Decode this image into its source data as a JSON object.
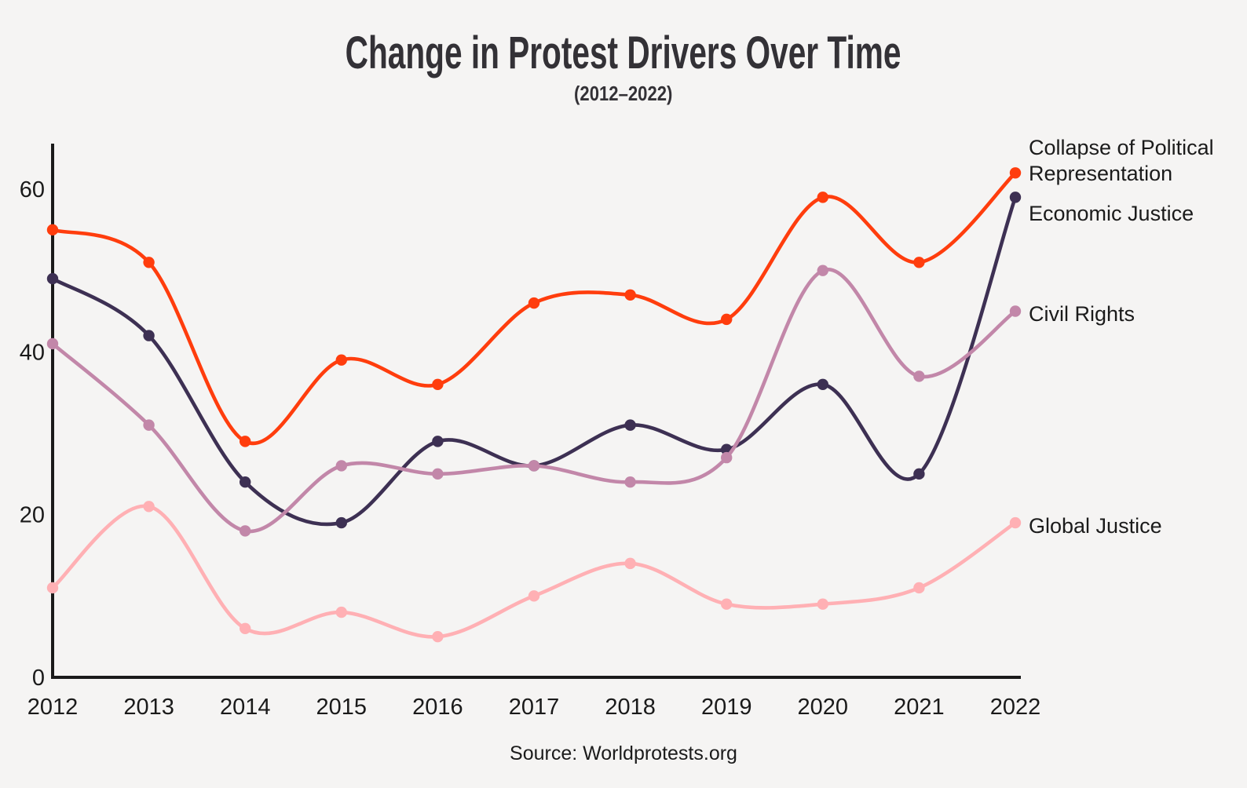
{
  "title": "Change in Protest Drivers Over Time",
  "subtitle": "(2012–2022)",
  "source": "Source: Worldprotests.org",
  "colors": {
    "background": "#F5F4F3",
    "axis": "#1A1A1A",
    "text": "#1B1B1B",
    "title_text": "#333136"
  },
  "chart_data": {
    "type": "line",
    "title": "Change in Protest Drivers Over Time",
    "subtitle": "(2012–2022)",
    "xlabel": "",
    "ylabel": "",
    "x": [
      2012,
      2013,
      2014,
      2015,
      2016,
      2017,
      2018,
      2019,
      2020,
      2021,
      2022
    ],
    "series": [
      {
        "name": "Collapse of Political Representation",
        "color": "#FF3D0D",
        "values": [
          55,
          51,
          29,
          39,
          36,
          46,
          47,
          44,
          59,
          51,
          62
        ]
      },
      {
        "name": "Economic Justice",
        "color": "#3D3053",
        "values": [
          49,
          42,
          24,
          19,
          29,
          26,
          31,
          28,
          36,
          25,
          59
        ]
      },
      {
        "name": "Civil Rights",
        "color": "#C287A9",
        "values": [
          41,
          31,
          18,
          26,
          25,
          26,
          24,
          27,
          50,
          37,
          45
        ]
      },
      {
        "name": "Global Justice",
        "color": "#FFB0B4",
        "values": [
          11,
          21,
          6,
          8,
          5,
          10,
          14,
          9,
          9,
          11,
          19
        ]
      }
    ],
    "ylim": [
      0,
      65
    ],
    "yticks": [
      0,
      20,
      40,
      60
    ],
    "grid": false,
    "smooth": true,
    "legend_position": "right"
  }
}
